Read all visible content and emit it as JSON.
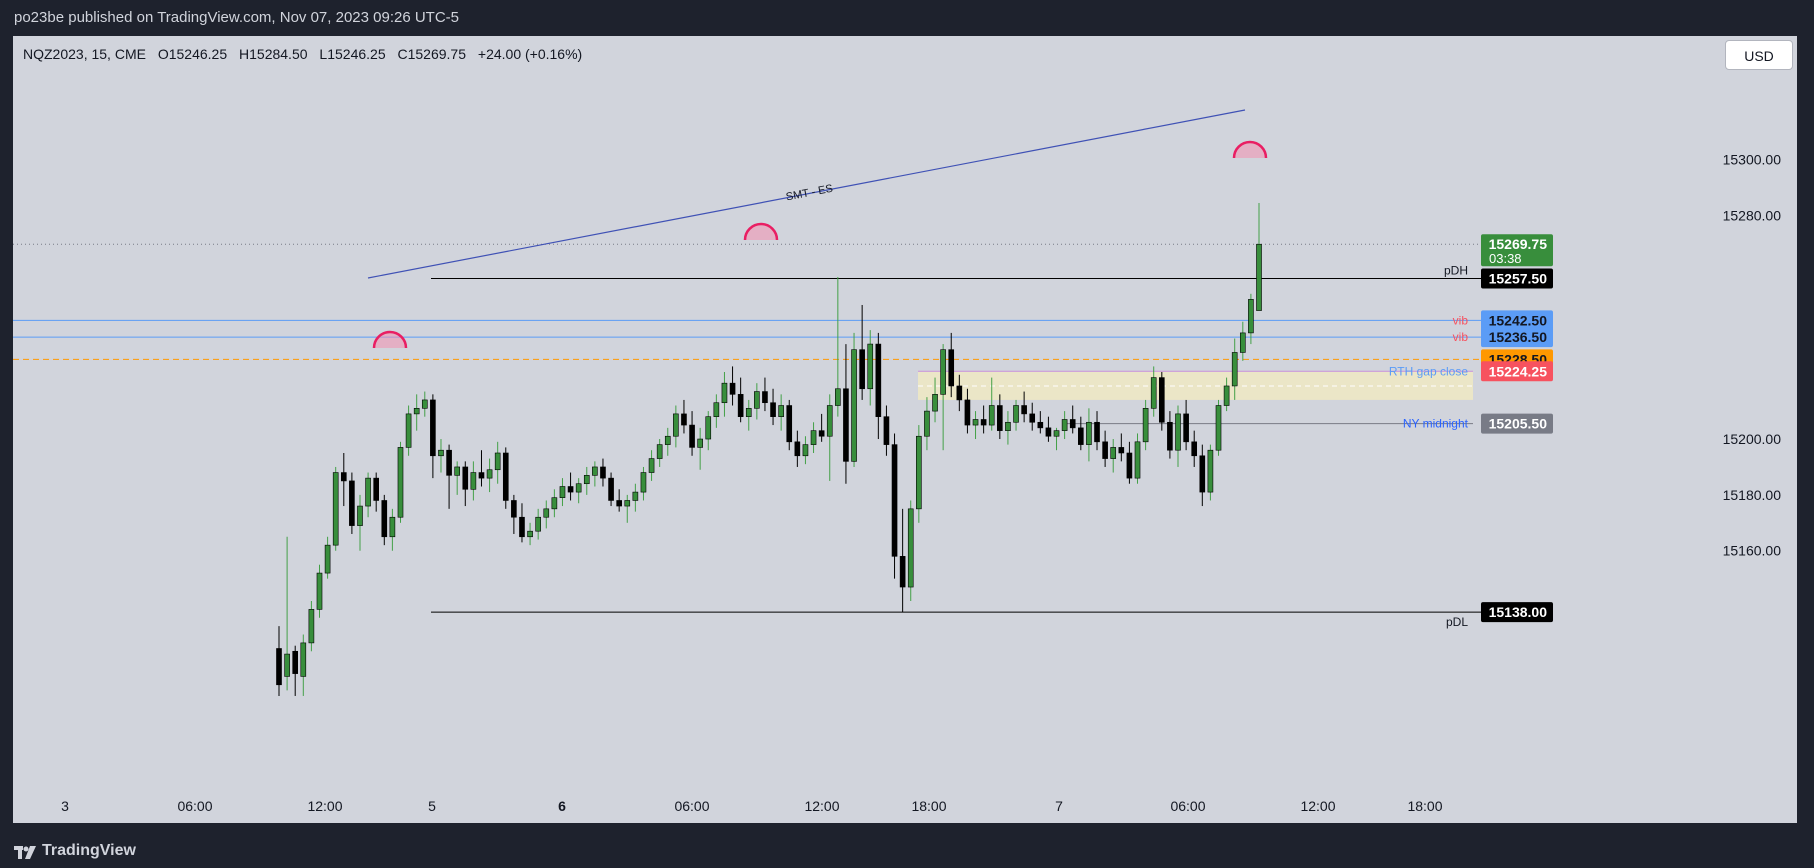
{
  "header": {
    "published_text": "po23be published on TradingView.com, Nov 07, 2023 09:26 UTC-5"
  },
  "legend": {
    "symbol": "NQZ2023, 15, CME",
    "open": "O15246.25",
    "high": "H15284.50",
    "low": "L15246.25",
    "close": "C15269.75",
    "change": "+24.00 (+0.16%)"
  },
  "currency_button": "USD",
  "footer": {
    "brand": "TradingView",
    "logo_icon": "tradingview-logo-icon"
  },
  "chart_data": {
    "type": "candlestick",
    "symbol": "NQZ2023",
    "interval": "15",
    "exchange": "CME",
    "currency": "USD",
    "ylim": [
      15113,
      15335
    ],
    "y_ticks": [
      "15300.00",
      "15280.00",
      "15200.00",
      "15180.00",
      "15160.00"
    ],
    "x_ticks": [
      {
        "label": "3",
        "bold": false
      },
      {
        "label": "06:00",
        "bold": false
      },
      {
        "label": "12:00",
        "bold": false
      },
      {
        "label": "5",
        "bold": false
      },
      {
        "label": "6",
        "bold": true
      },
      {
        "label": "06:00",
        "bold": false
      },
      {
        "label": "12:00",
        "bold": false
      },
      {
        "label": "18:00",
        "bold": false
      },
      {
        "label": "7",
        "bold": false
      },
      {
        "label": "06:00",
        "bold": false
      },
      {
        "label": "12:00",
        "bold": false
      },
      {
        "label": "18:00",
        "bold": false
      }
    ],
    "price_labels": [
      {
        "value": 15269.75,
        "text": "15269.75",
        "sub": "03:38",
        "color": "#388e3c",
        "text_color": "#ffffff"
      },
      {
        "value": 15257.5,
        "text": "15257.50",
        "color": "#000000",
        "text_color": "#ffffff"
      },
      {
        "value": 15242.5,
        "text": "15242.50",
        "color": "#5b9cf6",
        "text_color": "#131722"
      },
      {
        "value": 15236.5,
        "text": "15236.50",
        "color": "#5b9cf6",
        "text_color": "#131722"
      },
      {
        "value": 15228.5,
        "text": "15228.50",
        "color": "#ff9800",
        "text_color": "#131722"
      },
      {
        "value": 15224.25,
        "text": "15224.25",
        "color": "#f7525f",
        "text_color": "#ffffff"
      },
      {
        "value": 15205.5,
        "text": "15205.50",
        "color": "#787b86",
        "text_color": "#ffffff"
      },
      {
        "value": 15138.0,
        "text": "15138.00",
        "color": "#000000",
        "text_color": "#ffffff"
      }
    ],
    "levels": [
      {
        "name": "pDH",
        "value": 15257.5,
        "color": "#000000",
        "label": "pDH"
      },
      {
        "name": "pDL",
        "value": 15138.0,
        "color": "#000000",
        "label": "pDL"
      },
      {
        "name": "vib-1",
        "value": 15242.5,
        "color": "#5b9cf6",
        "label": "vib",
        "label_color": "#f7525f"
      },
      {
        "name": "vib-2",
        "value": 15236.5,
        "color": "#5b9cf6",
        "label": "vib",
        "label_color": "#f7525f"
      },
      {
        "name": "orange-dashed",
        "value": 15228.5,
        "color": "#ff9800",
        "label": ""
      },
      {
        "name": "rth-gap-close",
        "value": 15224.25,
        "color": "#ce93d8",
        "label": "RTH gap close",
        "label_color": "#5b9cf6"
      },
      {
        "name": "ny-midnight",
        "value": 15205.5,
        "color": "#787b86",
        "label": "NY midnight",
        "label_color": "#2962ff"
      }
    ],
    "annotations": [
      {
        "type": "trendline",
        "label": "SMT - ES",
        "color": "#3f51b5"
      }
    ],
    "candles": [
      [
        15125,
        15133,
        15108,
        15112
      ],
      [
        15115,
        15165,
        15110,
        15123
      ],
      [
        15124,
        15126,
        15108,
        15116
      ],
      [
        15115,
        15130,
        15108,
        15127
      ],
      [
        15127,
        15142,
        15124,
        15139
      ],
      [
        15139,
        15155,
        15136,
        15152
      ],
      [
        15152,
        15165,
        15150,
        15162
      ],
      [
        15162,
        15190,
        15160,
        15188
      ],
      [
        15188,
        15195,
        15176,
        15185
      ],
      [
        15185,
        15188,
        15166,
        15169
      ],
      [
        15169,
        15180,
        15160,
        15176
      ],
      [
        15176,
        15188,
        15172,
        15186
      ],
      [
        15186,
        15188,
        15174,
        15178
      ],
      [
        15178,
        15180,
        15162,
        15165
      ],
      [
        15165,
        15175,
        15160,
        15172
      ],
      [
        15172,
        15199,
        15170,
        15197
      ],
      [
        15197,
        15212,
        15194,
        15209
      ],
      [
        15209,
        15216,
        15203,
        15211
      ],
      [
        15211,
        15217,
        15208,
        15214
      ],
      [
        15214,
        15216,
        15186,
        15194
      ],
      [
        15194,
        15200,
        15188,
        15196
      ],
      [
        15196,
        15198,
        15175,
        15187
      ],
      [
        15187,
        15192,
        15180,
        15190
      ],
      [
        15190,
        15192,
        15176,
        15182
      ],
      [
        15182,
        15192,
        15178,
        15188
      ],
      [
        15188,
        15196,
        15183,
        15186
      ],
      [
        15186,
        15193,
        15181,
        15189
      ],
      [
        15189,
        15199,
        15184,
        15195
      ],
      [
        15195,
        15197,
        15175,
        15178
      ],
      [
        15178,
        15180,
        15166,
        15172
      ],
      [
        15172,
        15177,
        15163,
        15165
      ],
      [
        15165,
        15170,
        15162,
        15167
      ],
      [
        15167,
        15175,
        15164,
        15172
      ],
      [
        15172,
        15178,
        15168,
        15175
      ],
      [
        15175,
        15182,
        15172,
        15179
      ],
      [
        15179,
        15186,
        15176,
        15183
      ],
      [
        15183,
        15188,
        15178,
        15181
      ],
      [
        15181,
        15186,
        15177,
        15184
      ],
      [
        15184,
        15190,
        15180,
        15187
      ],
      [
        15187,
        15192,
        15183,
        15190
      ],
      [
        15190,
        15193,
        15183,
        15186
      ],
      [
        15186,
        15188,
        15176,
        15178
      ],
      [
        15178,
        15182,
        15174,
        15176
      ],
      [
        15176,
        15180,
        15170,
        15178
      ],
      [
        15178,
        15184,
        15174,
        15181
      ],
      [
        15181,
        15190,
        15178,
        15188
      ],
      [
        15188,
        15196,
        15185,
        15193
      ],
      [
        15193,
        15200,
        15190,
        15198
      ],
      [
        15198,
        15204,
        15194,
        15201
      ],
      [
        15201,
        15212,
        15197,
        15209
      ],
      [
        15209,
        15214,
        15202,
        15205
      ],
      [
        15205,
        15210,
        15194,
        15197
      ],
      [
        15197,
        15204,
        15189,
        15200
      ],
      [
        15200,
        15210,
        15196,
        15208
      ],
      [
        15208,
        15216,
        15204,
        15213
      ],
      [
        15213,
        15224,
        15208,
        15220
      ],
      [
        15220,
        15226,
        15212,
        15216
      ],
      [
        15216,
        15222,
        15206,
        15208
      ],
      [
        15208,
        15214,
        15203,
        15211
      ],
      [
        15211,
        15220,
        15207,
        15217
      ],
      [
        15217,
        15222,
        15210,
        15213
      ],
      [
        15213,
        15218,
        15205,
        15208
      ],
      [
        15208,
        15216,
        15203,
        15212
      ],
      [
        15212,
        15214,
        15196,
        15199
      ],
      [
        15199,
        15203,
        15190,
        15194
      ],
      [
        15194,
        15201,
        15191,
        15198
      ],
      [
        15198,
        15206,
        15195,
        15203
      ],
      [
        15203,
        15209,
        15199,
        15201
      ],
      [
        15201,
        15216,
        15185,
        15212
      ],
      [
        15212,
        15258,
        15208,
        15218
      ],
      [
        15218,
        15234,
        15184,
        15192
      ],
      [
        15192,
        15238,
        15190,
        15232
      ],
      [
        15232,
        15248,
        15214,
        15218
      ],
      [
        15218,
        15239,
        15212,
        15234
      ],
      [
        15234,
        15238,
        15200,
        15208
      ],
      [
        15208,
        15212,
        15194,
        15198
      ],
      [
        15198,
        15202,
        15150,
        15158
      ],
      [
        15158,
        15175,
        15138,
        15147
      ],
      [
        15147,
        15178,
        15142,
        15175
      ],
      [
        15175,
        15205,
        15170,
        15201
      ],
      [
        15201,
        15215,
        15196,
        15210
      ],
      [
        15210,
        15222,
        15206,
        15216
      ],
      [
        15216,
        15234,
        15196,
        15232
      ],
      [
        15232,
        15238,
        15215,
        15219
      ],
      [
        15219,
        15223,
        15210,
        15214
      ],
      [
        15214,
        15218,
        15202,
        15205
      ],
      [
        15205,
        15210,
        15200,
        15207
      ],
      [
        15207,
        15212,
        15202,
        15205
      ],
      [
        15205,
        15222,
        15203,
        15212
      ],
      [
        15212,
        15216,
        15200,
        15203
      ],
      [
        15203,
        15210,
        15198,
        15206
      ],
      [
        15206,
        15214,
        15203,
        15212
      ],
      [
        15212,
        15217,
        15206,
        15209
      ],
      [
        15209,
        15213,
        15203,
        15206
      ],
      [
        15206,
        15210,
        15202,
        15204
      ],
      [
        15204,
        15208,
        15199,
        15201
      ],
      [
        15201,
        15204,
        15196,
        15203
      ],
      [
        15203,
        15210,
        15200,
        15207
      ],
      [
        15207,
        15212,
        15202,
        15204
      ],
      [
        15204,
        15208,
        15196,
        15198
      ],
      [
        15198,
        15211,
        15192,
        15206
      ],
      [
        15206,
        15210,
        15196,
        15199
      ],
      [
        15199,
        15203,
        15190,
        15193
      ],
      [
        15193,
        15200,
        15188,
        15197
      ],
      [
        15197,
        15202,
        15192,
        15195
      ],
      [
        15195,
        15199,
        15184,
        15186
      ],
      [
        15186,
        15202,
        15184,
        15199
      ],
      [
        15199,
        15214,
        15196,
        15211
      ],
      [
        15211,
        15226,
        15208,
        15222
      ],
      [
        15222,
        15224,
        15203,
        15206
      ],
      [
        15206,
        15210,
        15193,
        15196
      ],
      [
        15196,
        15212,
        15190,
        15209
      ],
      [
        15209,
        15214,
        15196,
        15199
      ],
      [
        15199,
        15203,
        15190,
        15194
      ],
      [
        15194,
        15198,
        15176,
        15181
      ],
      [
        15181,
        15198,
        15178,
        15196
      ],
      [
        15196,
        15214,
        15194,
        15212
      ],
      [
        15212,
        15222,
        15210,
        15219
      ],
      [
        15219,
        15236,
        15214,
        15231
      ],
      [
        15231,
        15242,
        15228,
        15238
      ],
      [
        15238,
        15252,
        15234,
        15250
      ],
      [
        15246,
        15284.5,
        15246,
        15269.75
      ]
    ]
  }
}
